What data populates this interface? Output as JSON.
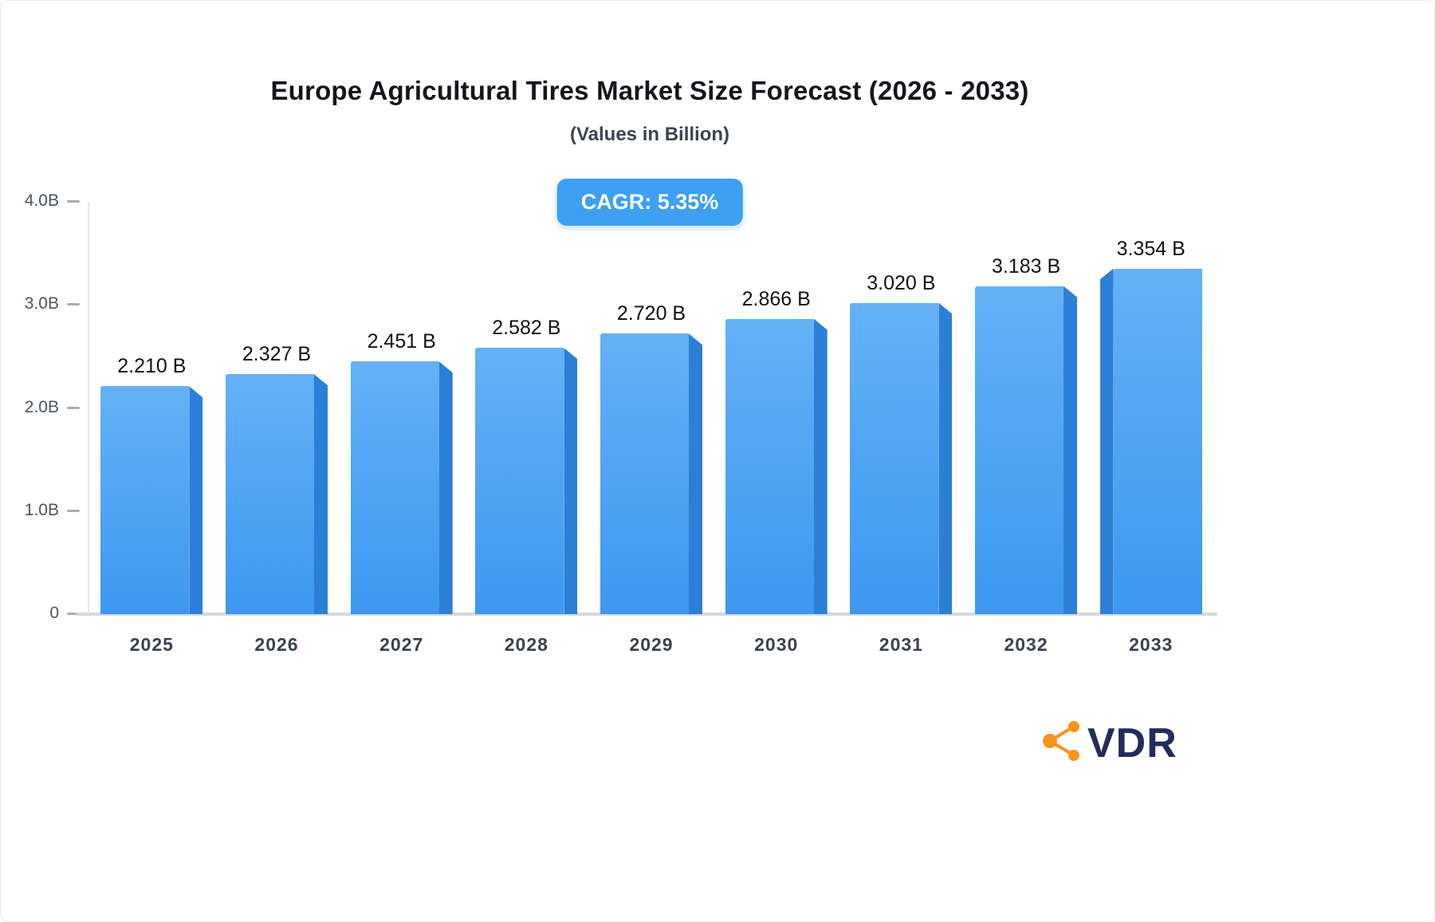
{
  "header": {
    "title": "Europe Agricultural Tires Market Size Forecast (2026 - 2033)",
    "subtitle": "(Values in Billion)"
  },
  "badge": {
    "label": "CAGR: 5.35%"
  },
  "logo": {
    "text": "VDR"
  },
  "chart_data": {
    "type": "bar",
    "title": "Europe Agricultural Tires Market Size Forecast (2026 - 2033)",
    "subtitle": "(Values in Billion)",
    "cagr": "5.35%",
    "categories": [
      "2025",
      "2026",
      "2027",
      "2028",
      "2029",
      "2030",
      "2031",
      "2032",
      "2033"
    ],
    "values": [
      2.21,
      2.327,
      2.451,
      2.582,
      2.72,
      2.866,
      3.02,
      3.183,
      3.354
    ],
    "value_labels": [
      "2.210 B",
      "2.327 B",
      "2.451 B",
      "2.582 B",
      "2.720 B",
      "2.866 B",
      "3.020 B",
      "3.183 B",
      "3.354 B"
    ],
    "xlabel": "",
    "ylabel": "",
    "ylim": [
      0,
      4
    ],
    "yticks": [
      {
        "label": "0",
        "value": 0
      },
      {
        "label": "1.0B",
        "value": 1
      },
      {
        "label": "2.0B",
        "value": 2
      },
      {
        "label": "3.0B",
        "value": 3
      },
      {
        "label": "4.0B",
        "value": 4
      }
    ],
    "grid": false,
    "legend": false,
    "bar_gradient_top": "#64b1f6",
    "bar_gradient_bottom": "#3d97f0",
    "bar_side_color": "#2b7fd6",
    "badge_color": "#3da0f2",
    "axis_color": "#d5d8dc",
    "logo_orange": "#f7941d",
    "logo_navy": "#232d5c"
  }
}
